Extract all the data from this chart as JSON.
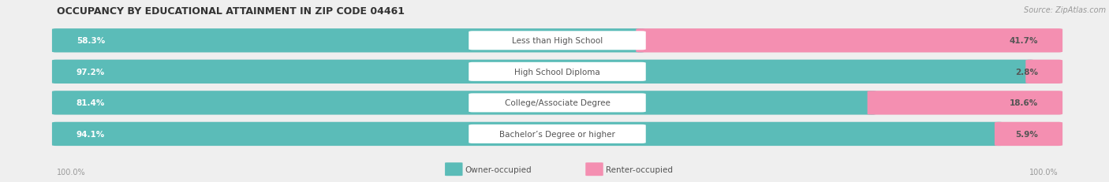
{
  "title": "OCCUPANCY BY EDUCATIONAL ATTAINMENT IN ZIP CODE 04461",
  "source": "Source: ZipAtlas.com",
  "categories": [
    "Less than High School",
    "High School Diploma",
    "College/Associate Degree",
    "Bachelor’s Degree or higher"
  ],
  "owner_pct": [
    58.3,
    97.2,
    81.4,
    94.1
  ],
  "renter_pct": [
    41.7,
    2.8,
    18.6,
    5.9
  ],
  "owner_color": "#5bbcb8",
  "renter_color": "#f48fb1",
  "bg_color": "#efefef",
  "title_fontsize": 9,
  "label_fontsize": 7.5,
  "tick_fontsize": 7,
  "source_fontsize": 7,
  "legend_fontsize": 7.5,
  "bottom_labels": [
    "100.0%",
    "100.0%"
  ]
}
